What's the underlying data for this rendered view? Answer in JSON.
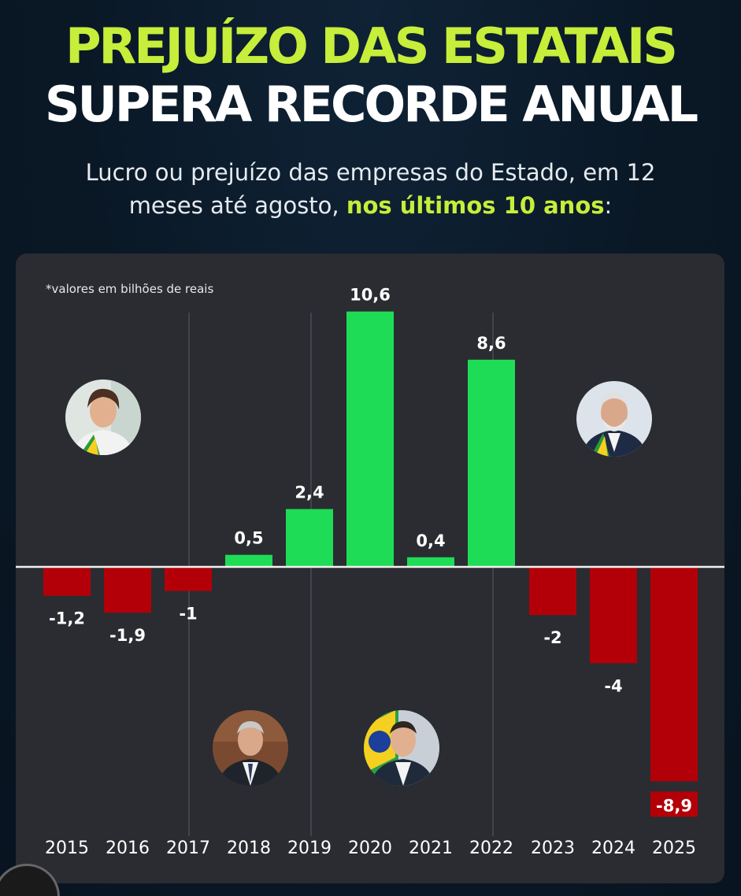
{
  "header": {
    "title_line1": "PREJUÍZO DAS ESTATAIS",
    "title_line2": "SUPERA RECORDE ANUAL",
    "subtitle_part1": "Lucro ou prejuízo das empresas do Estado, em 12",
    "subtitle_part2": "meses até agosto, ",
    "subtitle_highlight": "nos últimos 10 anos",
    "subtitle_end": ":"
  },
  "colors": {
    "title_accent": "#c6ee3a",
    "positive": "#1fdc56",
    "negative": "#b30008",
    "highlight_text": "#c6ee3a"
  },
  "chart_data": {
    "type": "bar",
    "note": "*valores em bilhões de reais",
    "categories": [
      "2015",
      "2016",
      "2017",
      "2018",
      "2019",
      "2020",
      "2021",
      "2022",
      "2023",
      "2024",
      "2025"
    ],
    "values": [
      -1.2,
      -1.9,
      -1,
      0.5,
      2.4,
      10.6,
      0.4,
      8.6,
      -2,
      -4,
      -8.9
    ],
    "labels": [
      "-1,2",
      "-1,9",
      "-1",
      "0,5",
      "2,4",
      "10,6",
      "0,4",
      "8,6",
      "-2",
      "-4",
      "-8,9"
    ],
    "ylim": [
      -8.9,
      10.6
    ],
    "grid": false,
    "period_dividers_after": [
      "2016",
      "2018",
      "2022"
    ]
  },
  "avatars": [
    {
      "name": "dilma-avatar",
      "period": "2015-2016"
    },
    {
      "name": "temer-avatar",
      "period": "2017-2018"
    },
    {
      "name": "bolsonaro-avatar",
      "period": "2019-2022"
    },
    {
      "name": "lula-avatar",
      "period": "2023-2025"
    }
  ]
}
